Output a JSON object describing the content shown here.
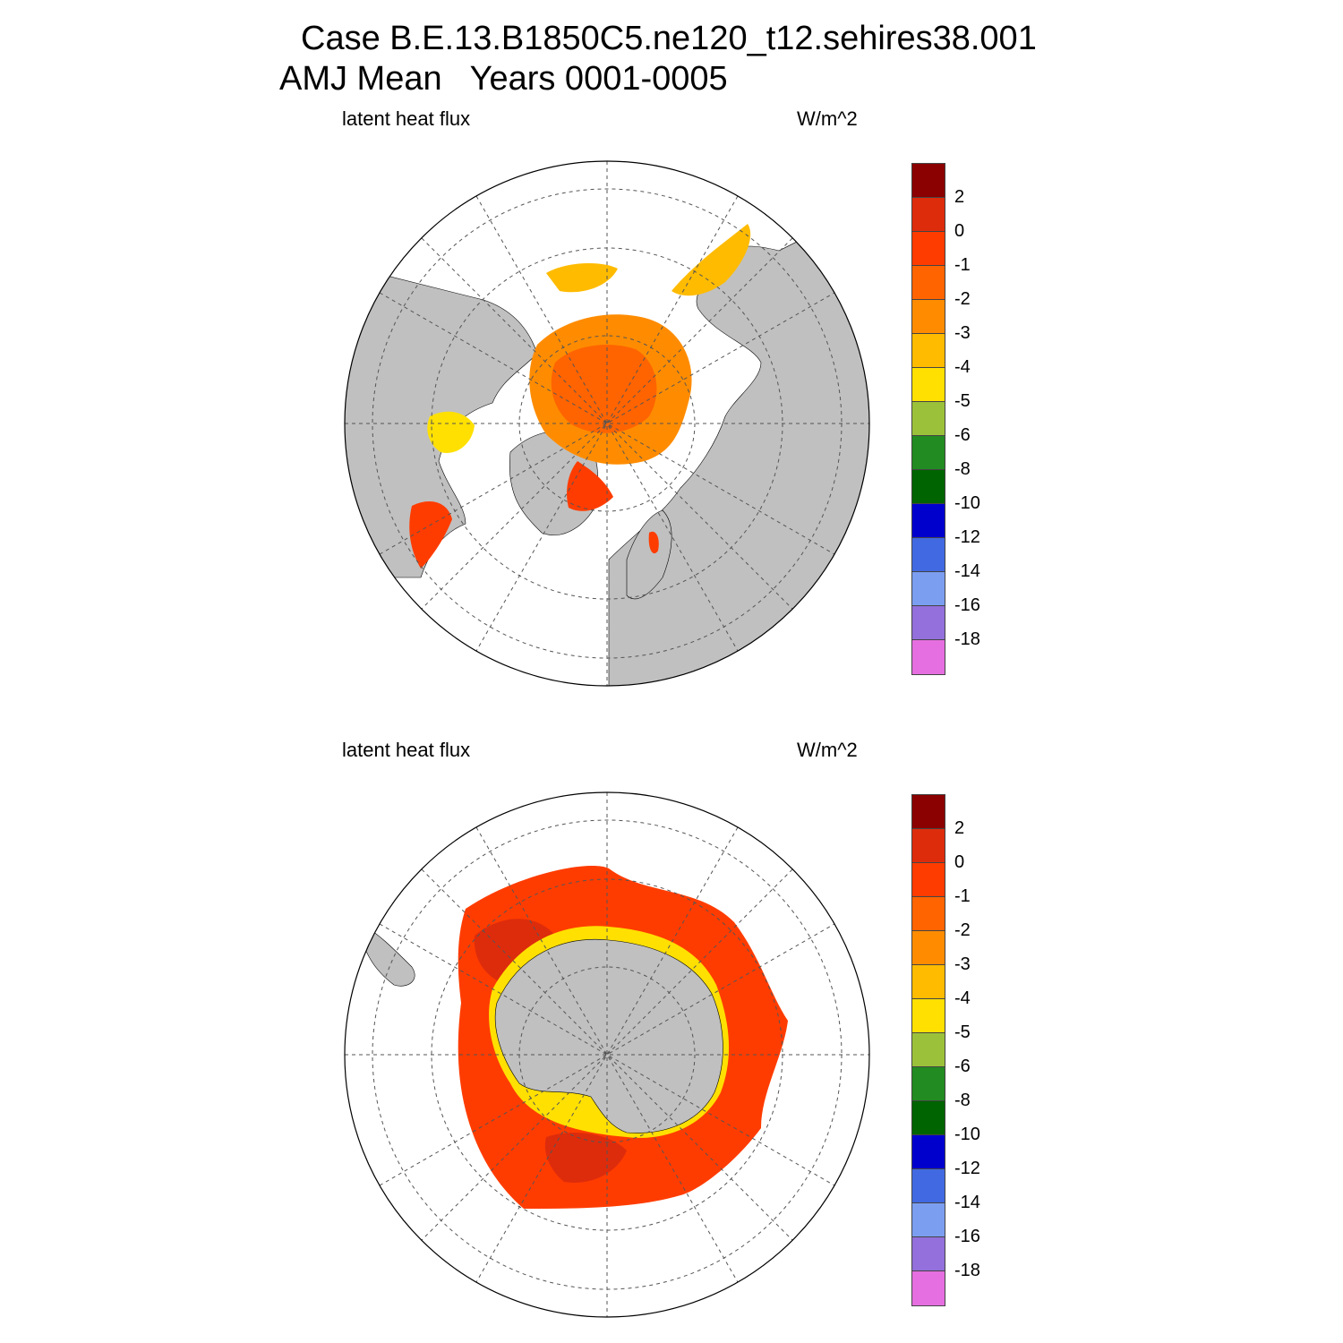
{
  "title": {
    "line1": "Case B.E.13.B1850C5.ne120_t12.sehires38.001",
    "line2": "AMJ Mean   Years 0001-0005"
  },
  "panels": [
    {
      "hemisphere": "north",
      "left_label": "latent heat flux",
      "right_label": "W/m^2"
    },
    {
      "hemisphere": "south",
      "left_label": "latent heat flux",
      "right_label": "W/m^2"
    }
  ],
  "colorbar": {
    "labels": [
      "2",
      "0",
      "-1",
      "-2",
      "-3",
      "-4",
      "-5",
      "-6",
      "-8",
      "-10",
      "-12",
      "-14",
      "-16",
      "-18"
    ],
    "colors": [
      "#8b0000",
      "#dd2c0c",
      "#ff3c00",
      "#ff6400",
      "#ff8c00",
      "#ffbb00",
      "#ffe000",
      "#9bc13a",
      "#228b22",
      "#006400",
      "#0000cd",
      "#4169e1",
      "#7b9ef0",
      "#9370db",
      "#e56fe0"
    ]
  },
  "colors": {
    "land": "#c0c0c0",
    "ocean_bg": "#ffffff",
    "grid": "#555555"
  }
}
